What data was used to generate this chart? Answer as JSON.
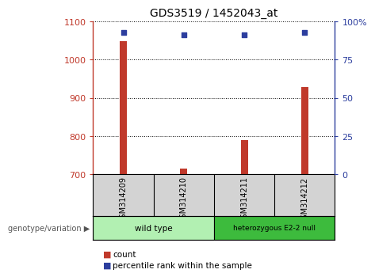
{
  "title": "GDS3519 / 1452043_at",
  "samples": [
    "GSM314209",
    "GSM314210",
    "GSM314211",
    "GSM314212"
  ],
  "counts": [
    1048,
    714,
    790,
    927
  ],
  "percentile_ranks": [
    93,
    91,
    91,
    93
  ],
  "ylim_left": [
    700,
    1100
  ],
  "ylim_right": [
    0,
    100
  ],
  "yticks_left": [
    700,
    800,
    900,
    1000,
    1100
  ],
  "yticks_right": [
    0,
    25,
    50,
    75,
    100
  ],
  "yticklabels_right": [
    "0",
    "25",
    "50",
    "75",
    "100%"
  ],
  "bar_color": "#c0392b",
  "dot_color": "#2c3e9e",
  "bar_width": 0.12,
  "groups": [
    {
      "label": "wild type",
      "samples": [
        0,
        1
      ],
      "color": "#aaffaa"
    },
    {
      "label": "heterozygous E2-2 null",
      "samples": [
        2,
        3
      ],
      "color": "#44cc44"
    }
  ],
  "group_row_label": "genotype/variation",
  "legend_count_label": "count",
  "legend_pct_label": "percentile rank within the sample",
  "grid_color": "black",
  "label_bg": "#d3d3d3",
  "group1_color": "#b2f0b2",
  "group2_color": "#3dbb3d"
}
